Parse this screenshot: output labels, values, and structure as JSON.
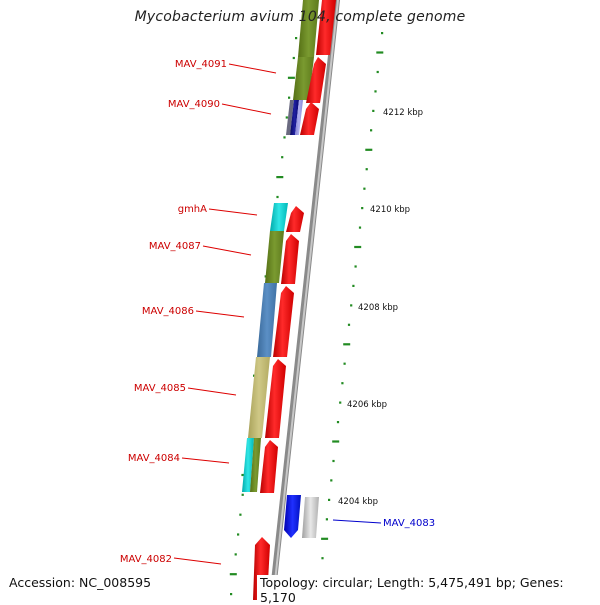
{
  "title": "Mycobacterium avium 104, complete genome",
  "accession": "Accession: NC_008595",
  "topology": "Topology: circular; Length: 5,475,491 bp; Genes: 5,170",
  "colors": {
    "forward_gene": "#ff0000",
    "reverse_gene": "#1010ee",
    "label_forward": "#cc0000",
    "label_reverse": "#0000cc",
    "olive": "#6b8e23",
    "steel": "#4a7fb5",
    "khaki": "#bdb76b",
    "cyan": "#00cccc",
    "navy": "#101080",
    "tick": "#228b22",
    "backbone": "#888888"
  },
  "scale_labels": [
    "4212 kbp",
    "4210 kbp",
    "4208 kbp",
    "4206 kbp",
    "4204 kbp"
  ],
  "gene_labels": [
    {
      "name": "MAV_4091",
      "strand": "forward"
    },
    {
      "name": "MAV_4090",
      "strand": "forward"
    },
    {
      "name": "gmhA",
      "strand": "forward"
    },
    {
      "name": "MAV_4087",
      "strand": "forward"
    },
    {
      "name": "MAV_4086",
      "strand": "forward"
    },
    {
      "name": "MAV_4085",
      "strand": "forward"
    },
    {
      "name": "MAV_4084",
      "strand": "forward"
    },
    {
      "name": "MAV_4083",
      "strand": "reverse"
    },
    {
      "name": "MAV_4082",
      "strand": "forward"
    }
  ]
}
